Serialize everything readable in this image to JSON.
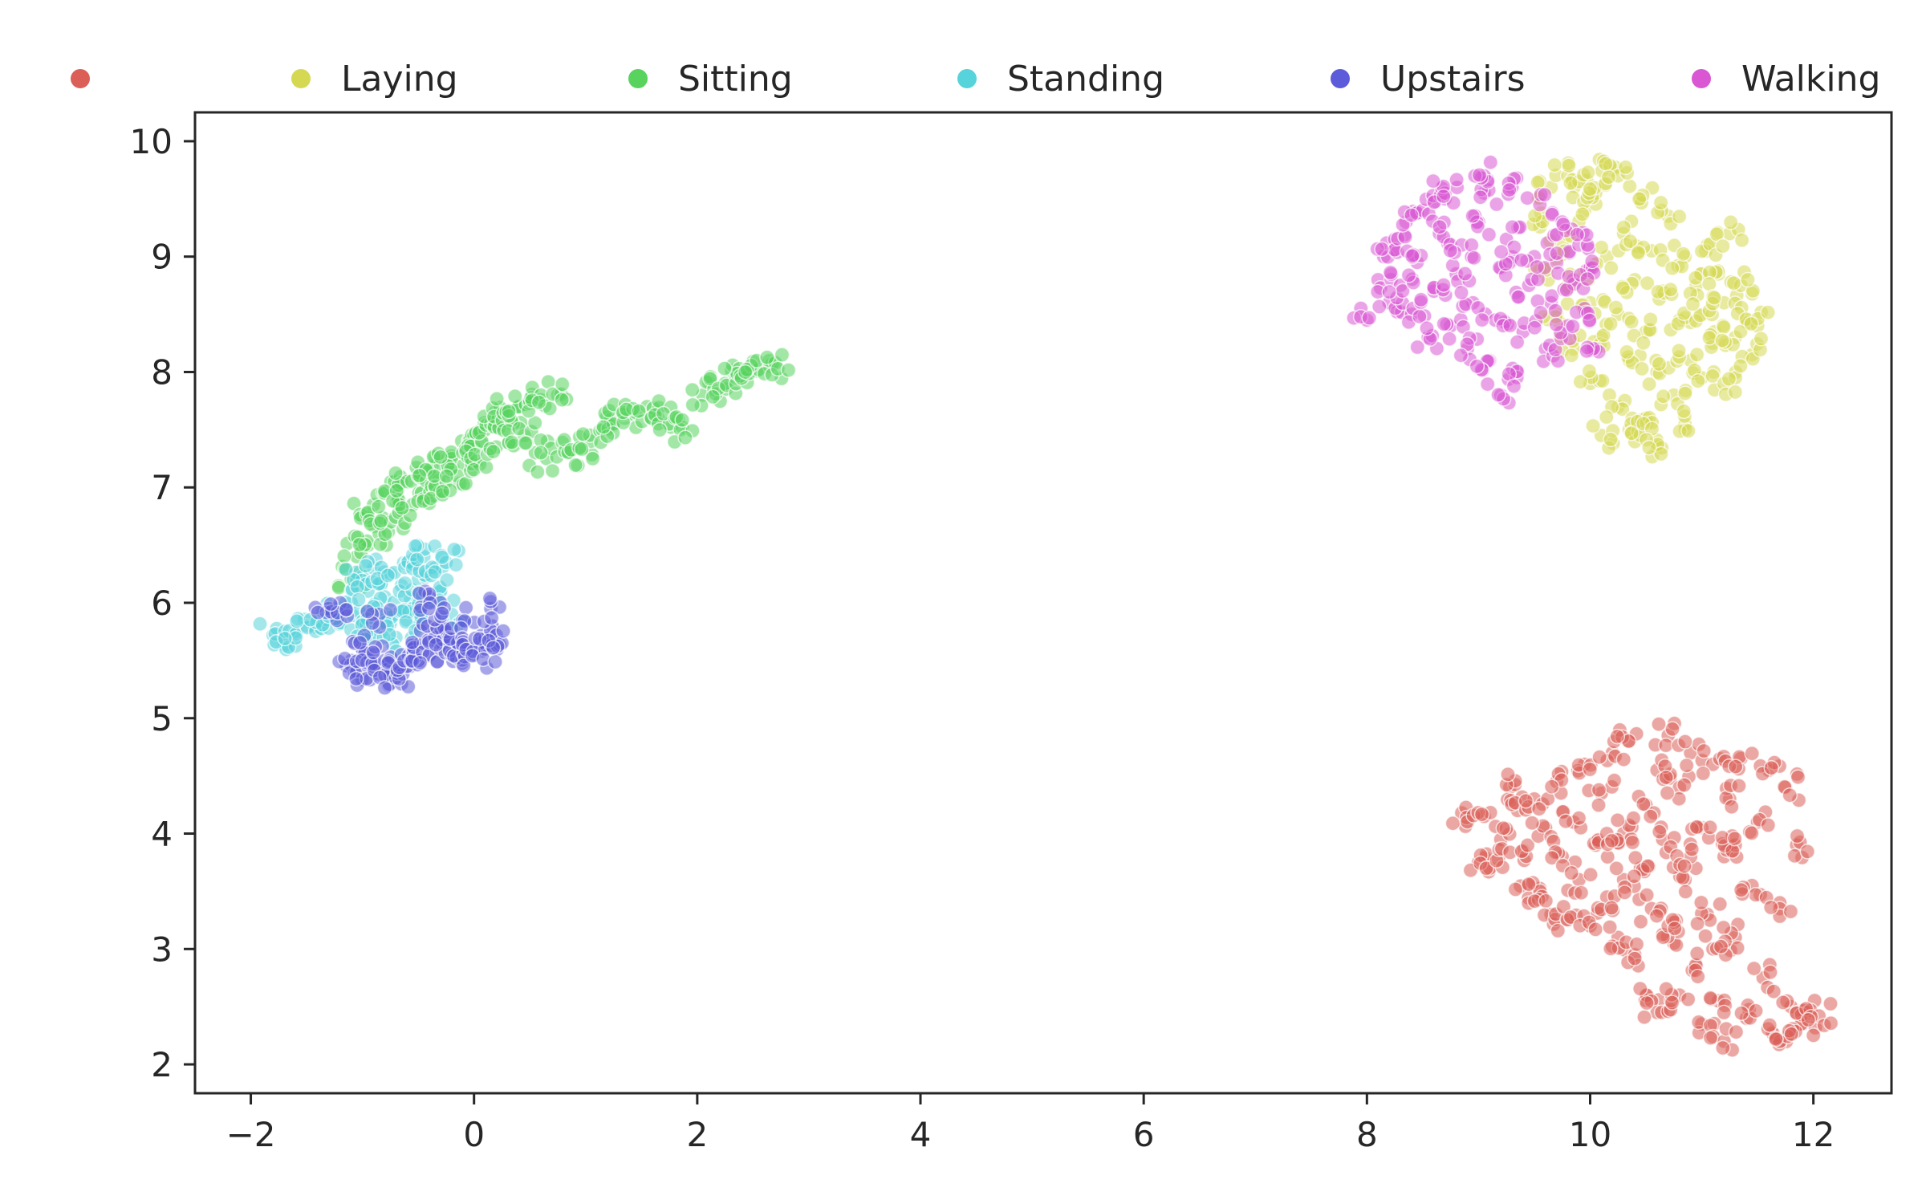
{
  "chart_data": {
    "type": "scatter",
    "title": "",
    "xlabel": "",
    "ylabel": "",
    "xlim": [
      -2.5,
      12.7
    ],
    "ylim": [
      1.75,
      10.25
    ],
    "x_ticks": [
      -2,
      0,
      2,
      4,
      6,
      8,
      10,
      12
    ],
    "x_tick_labels": [
      "−2",
      "0",
      "2",
      "4",
      "6",
      "8",
      "10",
      "12"
    ],
    "y_ticks": [
      2,
      3,
      4,
      5,
      6,
      7,
      8,
      9,
      10
    ],
    "y_tick_labels": [
      "2",
      "3",
      "4",
      "5",
      "6",
      "7",
      "8",
      "9",
      "10"
    ],
    "grid": false,
    "legend_position": "top, outside plot area, horizontal",
    "series": [
      {
        "name": "",
        "color": "#db5f57",
        "points": [
          [
            8.85,
            4.18
          ],
          [
            9.0,
            3.75
          ],
          [
            9.05,
            4.15
          ],
          [
            9.1,
            3.7
          ],
          [
            9.2,
            3.95
          ],
          [
            9.28,
            4.4
          ],
          [
            9.35,
            4.2
          ],
          [
            9.4,
            3.85
          ],
          [
            9.45,
            3.55
          ],
          [
            9.5,
            4.3
          ],
          [
            9.55,
            3.5
          ],
          [
            9.6,
            4.05
          ],
          [
            9.65,
            3.3
          ],
          [
            9.7,
            4.45
          ],
          [
            9.75,
            3.8
          ],
          [
            9.8,
            3.25
          ],
          [
            9.85,
            4.1
          ],
          [
            9.9,
            3.6
          ],
          [
            9.95,
            4.6
          ],
          [
            10.0,
            3.2
          ],
          [
            10.05,
            3.9
          ],
          [
            10.1,
            4.35
          ],
          [
            10.15,
            3.45
          ],
          [
            10.2,
            4.7
          ],
          [
            10.25,
            3.1
          ],
          [
            10.3,
            4.0
          ],
          [
            10.35,
            4.8
          ],
          [
            10.4,
            2.95
          ],
          [
            10.45,
            3.7
          ],
          [
            10.5,
            4.25
          ],
          [
            10.5,
            2.6
          ],
          [
            10.55,
            3.35
          ],
          [
            10.6,
            4.55
          ],
          [
            10.6,
            2.45
          ],
          [
            10.65,
            3.95
          ],
          [
            10.7,
            4.85
          ],
          [
            10.75,
            3.05
          ],
          [
            10.8,
            4.4
          ],
          [
            10.8,
            2.6
          ],
          [
            10.85,
            3.6
          ],
          [
            10.9,
            4.7
          ],
          [
            10.95,
            2.85
          ],
          [
            11.0,
            4.05
          ],
          [
            11.0,
            2.35
          ],
          [
            11.05,
            3.3
          ],
          [
            11.1,
            4.6
          ],
          [
            11.15,
            2.55
          ],
          [
            11.2,
            3.8
          ],
          [
            11.2,
            2.2
          ],
          [
            11.25,
            4.3
          ],
          [
            11.3,
            3.1
          ],
          [
            11.35,
            4.65
          ],
          [
            11.4,
            2.4
          ],
          [
            11.45,
            3.55
          ],
          [
            11.5,
            4.1
          ],
          [
            11.55,
            2.75
          ],
          [
            11.6,
            4.55
          ],
          [
            11.65,
            2.25
          ],
          [
            11.7,
            3.4
          ],
          [
            11.75,
            4.4
          ],
          [
            11.8,
            2.5
          ],
          [
            11.85,
            3.9
          ],
          [
            11.9,
            2.35
          ],
          [
            11.95,
            2.45
          ],
          [
            12.05,
            2.42
          ],
          [
            11.7,
            2.2
          ],
          [
            10.3,
            3.6
          ],
          [
            10.7,
            3.2
          ],
          [
            11.1,
            3.0
          ],
          [
            10.15,
            4.0
          ],
          [
            10.9,
            3.8
          ],
          [
            11.3,
            3.9
          ]
        ]
      },
      {
        "name": "Laying",
        "color": "#d5d952",
        "points": [
          [
            9.55,
            9.3
          ],
          [
            9.6,
            8.9
          ],
          [
            9.65,
            9.6
          ],
          [
            9.7,
            8.5
          ],
          [
            9.75,
            9.1
          ],
          [
            9.8,
            9.7
          ],
          [
            9.85,
            8.2
          ],
          [
            9.9,
            8.8
          ],
          [
            9.95,
            9.4
          ],
          [
            10.0,
            7.9
          ],
          [
            10.0,
            8.6
          ],
          [
            10.05,
            9.55
          ],
          [
            10.1,
            7.45
          ],
          [
            10.1,
            8.3
          ],
          [
            10.15,
            9.0
          ],
          [
            10.2,
            9.75
          ],
          [
            10.25,
            7.7
          ],
          [
            10.25,
            8.5
          ],
          [
            10.3,
            9.2
          ],
          [
            10.35,
            7.5
          ],
          [
            10.35,
            8.1
          ],
          [
            10.4,
            8.8
          ],
          [
            10.45,
            9.5
          ],
          [
            10.5,
            7.6
          ],
          [
            10.5,
            8.35
          ],
          [
            10.55,
            9.05
          ],
          [
            10.6,
            7.35
          ],
          [
            10.6,
            8.0
          ],
          [
            10.65,
            8.7
          ],
          [
            10.7,
            9.35
          ],
          [
            10.75,
            7.8
          ],
          [
            10.8,
            8.45
          ],
          [
            10.85,
            9.0
          ],
          [
            10.9,
            8.1
          ],
          [
            10.95,
            8.75
          ],
          [
            11.0,
            7.95
          ],
          [
            11.0,
            8.5
          ],
          [
            11.05,
            9.1
          ],
          [
            11.1,
            8.25
          ],
          [
            11.15,
            8.85
          ],
          [
            11.2,
            7.9
          ],
          [
            11.2,
            8.6
          ],
          [
            11.25,
            9.2
          ],
          [
            11.3,
            8.3
          ],
          [
            11.35,
            8.75
          ],
          [
            11.4,
            8.45
          ],
          [
            11.45,
            8.15
          ],
          [
            11.5,
            8.4
          ],
          [
            10.45,
            7.45
          ],
          [
            10.85,
            7.55
          ],
          [
            9.9,
            9.65
          ],
          [
            10.25,
            9.7
          ]
        ]
      },
      {
        "name": "Sitting",
        "color": "#57d35e",
        "points": [
          [
            -1.1,
            6.2
          ],
          [
            -1.05,
            6.4
          ],
          [
            -1.0,
            6.75
          ],
          [
            -0.95,
            6.5
          ],
          [
            -0.9,
            6.85
          ],
          [
            -0.85,
            6.6
          ],
          [
            -0.8,
            6.95
          ],
          [
            -0.75,
            6.7
          ],
          [
            -0.7,
            7.0
          ],
          [
            -0.65,
            6.8
          ],
          [
            -0.6,
            7.05
          ],
          [
            -0.55,
            6.85
          ],
          [
            -0.5,
            7.1
          ],
          [
            -0.45,
            6.9
          ],
          [
            -0.4,
            7.15
          ],
          [
            -0.35,
            7.0
          ],
          [
            -0.3,
            7.2
          ],
          [
            -0.25,
            7.05
          ],
          [
            -0.2,
            7.25
          ],
          [
            -0.15,
            7.1
          ],
          [
            -0.1,
            7.3
          ],
          [
            -0.05,
            7.4
          ],
          [
            0.0,
            7.45
          ],
          [
            0.05,
            7.2
          ],
          [
            0.1,
            7.5
          ],
          [
            0.15,
            7.55
          ],
          [
            0.2,
            7.35
          ],
          [
            0.25,
            7.6
          ],
          [
            0.3,
            7.65
          ],
          [
            0.35,
            7.55
          ],
          [
            0.4,
            7.7
          ],
          [
            0.45,
            7.45
          ],
          [
            0.5,
            7.75
          ],
          [
            0.55,
            7.3
          ],
          [
            0.6,
            7.8
          ],
          [
            0.65,
            7.25
          ],
          [
            0.75,
            7.8
          ],
          [
            0.85,
            7.3
          ],
          [
            0.95,
            7.35
          ],
          [
            1.05,
            7.4
          ],
          [
            1.15,
            7.5
          ],
          [
            1.25,
            7.55
          ],
          [
            1.35,
            7.6
          ],
          [
            1.45,
            7.65
          ],
          [
            1.55,
            7.7
          ],
          [
            1.65,
            7.6
          ],
          [
            1.75,
            7.55
          ],
          [
            1.85,
            7.5
          ],
          [
            2.05,
            7.8
          ],
          [
            2.15,
            7.85
          ],
          [
            2.25,
            7.9
          ],
          [
            2.35,
            7.95
          ],
          [
            2.45,
            8.0
          ],
          [
            2.55,
            8.02
          ],
          [
            2.65,
            8.05
          ],
          [
            2.7,
            8.08
          ]
        ]
      },
      {
        "name": "Standing",
        "color": "#57d3db",
        "points": [
          [
            -1.8,
            5.72
          ],
          [
            -1.7,
            5.7
          ],
          [
            -1.6,
            5.75
          ],
          [
            -1.5,
            5.8
          ],
          [
            -1.4,
            5.85
          ],
          [
            -1.3,
            5.9
          ],
          [
            -1.2,
            5.95
          ],
          [
            -1.1,
            6.0
          ],
          [
            -1.05,
            6.2
          ],
          [
            -1.0,
            5.8
          ],
          [
            -0.95,
            6.1
          ],
          [
            -0.9,
            6.3
          ],
          [
            -0.85,
            5.85
          ],
          [
            -0.8,
            6.05
          ],
          [
            -0.75,
            6.25
          ],
          [
            -0.7,
            5.9
          ],
          [
            -0.65,
            6.15
          ],
          [
            -0.6,
            6.35
          ],
          [
            -0.55,
            5.95
          ],
          [
            -0.5,
            6.2
          ],
          [
            -0.45,
            6.4
          ],
          [
            -0.4,
            6.0
          ],
          [
            -0.35,
            6.3
          ],
          [
            -0.3,
            6.1
          ],
          [
            -0.25,
            6.35
          ],
          [
            -0.2,
            5.9
          ],
          [
            -0.95,
            5.75
          ],
          [
            -0.7,
            5.7
          ],
          [
            -0.5,
            5.8
          ]
        ]
      },
      {
        "name": "Upstairs",
        "color": "#5c5bd9",
        "points": [
          [
            -1.3,
            5.95
          ],
          [
            -1.2,
            6.0
          ],
          [
            -1.1,
            5.5
          ],
          [
            -1.05,
            5.4
          ],
          [
            -1.0,
            5.6
          ],
          [
            -0.95,
            5.45
          ],
          [
            -0.9,
            5.55
          ],
          [
            -0.85,
            5.38
          ],
          [
            -0.8,
            5.5
          ],
          [
            -0.75,
            5.4
          ],
          [
            -0.7,
            5.35
          ],
          [
            -0.65,
            5.55
          ],
          [
            -0.6,
            5.45
          ],
          [
            -0.55,
            5.6
          ],
          [
            -0.5,
            5.5
          ],
          [
            -0.45,
            5.65
          ],
          [
            -0.4,
            5.55
          ],
          [
            -0.35,
            5.7
          ],
          [
            -0.3,
            5.6
          ],
          [
            -0.25,
            5.75
          ],
          [
            -0.2,
            5.55
          ],
          [
            -0.15,
            5.65
          ],
          [
            -0.1,
            5.85
          ],
          [
            -0.05,
            5.6
          ],
          [
            0.0,
            5.55
          ],
          [
            0.05,
            5.65
          ],
          [
            0.1,
            5.6
          ],
          [
            0.15,
            5.7
          ],
          [
            0.2,
            5.72
          ],
          [
            -0.4,
            6.05
          ],
          [
            -0.3,
            6.0
          ],
          [
            0.15,
            5.95
          ],
          [
            -0.85,
            5.9
          ]
        ]
      },
      {
        "name": "Walking",
        "color": "#d957d3",
        "points": [
          [
            8.1,
            8.8
          ],
          [
            8.15,
            9.0
          ],
          [
            8.2,
            8.6
          ],
          [
            8.25,
            9.15
          ],
          [
            8.3,
            8.75
          ],
          [
            8.35,
            9.3
          ],
          [
            8.4,
            8.5
          ],
          [
            8.45,
            8.95
          ],
          [
            8.5,
            9.4
          ],
          [
            8.55,
            8.3
          ],
          [
            8.6,
            8.7
          ],
          [
            8.65,
            9.2
          ],
          [
            8.7,
            9.5
          ],
          [
            8.75,
            8.4
          ],
          [
            8.8,
            8.85
          ],
          [
            8.85,
            9.1
          ],
          [
            8.9,
            8.2
          ],
          [
            8.95,
            8.6
          ],
          [
            9.0,
            9.3
          ],
          [
            9.05,
            9.55
          ],
          [
            9.1,
            8.1
          ],
          [
            9.15,
            8.45
          ],
          [
            9.2,
            8.9
          ],
          [
            9.25,
            9.15
          ],
          [
            9.3,
            9.6
          ],
          [
            9.35,
            8.0
          ],
          [
            9.4,
            8.35
          ],
          [
            9.45,
            8.75
          ],
          [
            9.5,
            9.0
          ],
          [
            9.55,
            9.45
          ],
          [
            9.6,
            8.2
          ],
          [
            9.65,
            8.6
          ],
          [
            9.7,
            8.95
          ],
          [
            9.75,
            9.3
          ],
          [
            9.8,
            8.4
          ],
          [
            9.85,
            8.8
          ],
          [
            9.9,
            9.1
          ],
          [
            9.95,
            8.55
          ],
          [
            10.0,
            8.9
          ],
          [
            10.05,
            8.2
          ],
          [
            9.2,
            7.8
          ],
          [
            8.0,
            8.45
          ],
          [
            8.7,
            9.55
          ],
          [
            9.05,
            9.7
          ]
        ]
      }
    ]
  }
}
